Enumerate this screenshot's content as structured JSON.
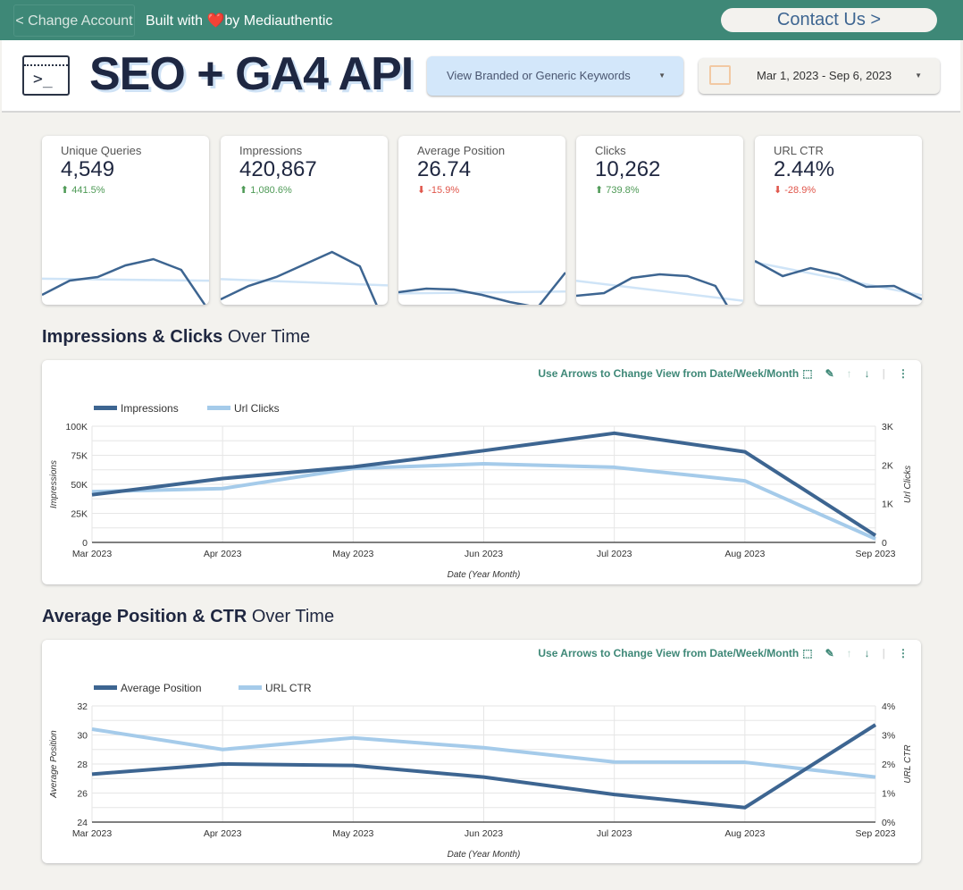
{
  "topbar": {
    "change_account": "< Change Account",
    "built_with": "Built with",
    "heart": "❤️",
    "by": "by Mediauthentic",
    "contact": "Contact Us >"
  },
  "header": {
    "title": "SEO + GA4 API",
    "logo_glyph": ">_",
    "keyword_filter": "View Branded or Generic Keywords",
    "date_range": "Mar 1, 2023 - Sep 6, 2023"
  },
  "kpis": [
    {
      "label": "Unique Queries",
      "value": "4,549",
      "change": "⬆ 441.5%",
      "dir": "up",
      "spark": [
        62,
        78,
        82,
        95,
        102,
        90,
        44
      ]
    },
    {
      "label": "Impressions",
      "value": "420,867",
      "change": "⬆ 1,080.6%",
      "dir": "up",
      "spark": [
        57,
        72,
        82,
        96,
        110,
        94,
        22
      ]
    },
    {
      "label": "Average Position",
      "value": "26.74",
      "change": "⬇ -15.9%",
      "dir": "down",
      "spark": [
        65,
        69,
        68,
        62,
        54,
        48,
        87
      ]
    },
    {
      "label": "Clicks",
      "value": "10,262",
      "change": "⬆ 739.8%",
      "dir": "up",
      "spark": [
        61,
        64,
        81,
        85,
        83,
        72,
        20
      ]
    },
    {
      "label": "URL CTR",
      "value": "2.44%",
      "change": "⬇ -28.9%",
      "dir": "down",
      "spark": [
        100,
        83,
        92,
        85,
        71,
        72,
        57
      ]
    }
  ],
  "colors": {
    "up": "#4e9a56",
    "down": "#e0564b",
    "dark": "#3d6591",
    "light": "#a5cbea"
  },
  "section1": {
    "bold": "Impressions & Clicks",
    "rest": " Over Time"
  },
  "section2": {
    "bold": "Average Position & CTR",
    "rest": " Over Time"
  },
  "toolbar": {
    "hint": "Use Arrows to Change View from Date/Week/Month"
  },
  "chart_data": [
    {
      "type": "line",
      "categories": [
        "Mar 2023",
        "Apr 2023",
        "May 2023",
        "Jun 2023",
        "Jul 2023",
        "Aug 2023",
        "Sep 2023"
      ],
      "series": [
        {
          "name": "Impressions",
          "axis": "left",
          "values": [
            41000,
            55000,
            65000,
            79000,
            94000,
            78000,
            6000
          ]
        },
        {
          "name": "Url Clicks",
          "axis": "right",
          "values": [
            1310,
            1390,
            1910,
            2030,
            1940,
            1590,
            90
          ]
        }
      ],
      "xlabel": "Date (Year Month)",
      "ylabel": "Impressions",
      "y2label": "Url Clicks",
      "ylim": [
        0,
        100000
      ],
      "y2lim": [
        0,
        3000
      ],
      "yticks": [
        "0",
        "25K",
        "50K",
        "75K",
        "100K"
      ],
      "y2ticks": [
        "0",
        "1K",
        "2K",
        "3K"
      ],
      "legend": "top-left",
      "grid": true
    },
    {
      "type": "line",
      "categories": [
        "Mar 2023",
        "Apr 2023",
        "May 2023",
        "Jun 2023",
        "Jul 2023",
        "Aug 2023",
        "Sep 2023"
      ],
      "series": [
        {
          "name": "Average Position",
          "axis": "left",
          "values": [
            27.3,
            28.0,
            27.9,
            27.1,
            25.9,
            25.0,
            30.7
          ]
        },
        {
          "name": "URL CTR",
          "axis": "right",
          "values": [
            3.2,
            2.5,
            2.9,
            2.56,
            2.07,
            2.06,
            1.55
          ]
        }
      ],
      "xlabel": "Date (Year Month)",
      "ylabel": "Average Position",
      "y2label": "URL CTR",
      "ylim": [
        24,
        32
      ],
      "y2lim": [
        0,
        4
      ],
      "yticks": [
        "24",
        "26",
        "28",
        "30",
        "32"
      ],
      "y2ticks": [
        "0%",
        "1%",
        "2%",
        "3%",
        "4%"
      ],
      "legend": "top-left",
      "grid": true
    }
  ]
}
